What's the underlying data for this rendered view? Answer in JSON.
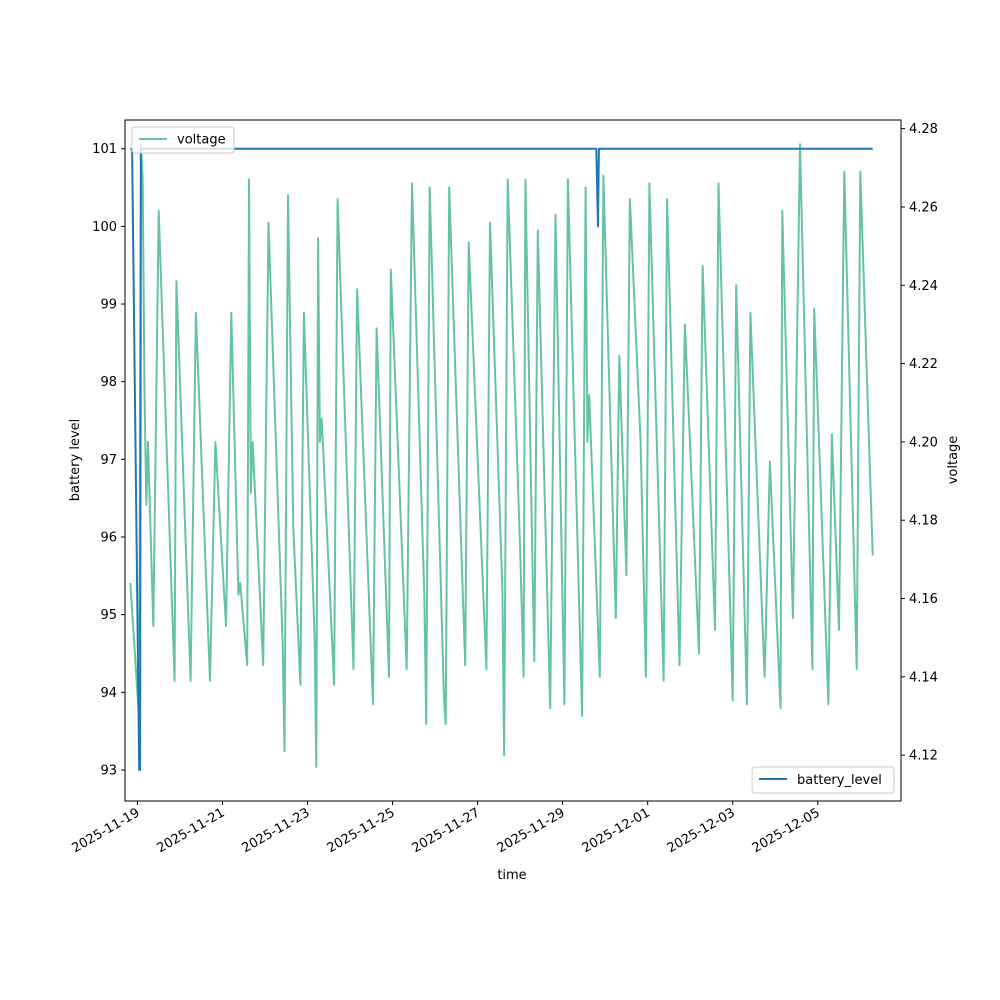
{
  "chart_data": {
    "type": "line",
    "xlabel": "time",
    "ylabel_left": "battery level",
    "ylabel_right": "voltage",
    "x_range": [
      "2025-11-18T17:00",
      "2025-12-06T23:00"
    ],
    "ylim_left": [
      92.6,
      101.37
    ],
    "ylim_right": [
      4.1083,
      4.2822
    ],
    "x_ticks": [
      "2025-11-19",
      "2025-11-21",
      "2025-11-23",
      "2025-11-25",
      "2025-11-27",
      "2025-11-29",
      "2025-12-01",
      "2025-12-03",
      "2025-12-05"
    ],
    "y_ticks_left": [
      93,
      94,
      95,
      96,
      97,
      98,
      99,
      100,
      101
    ],
    "y_ticks_right": [
      4.12,
      4.14,
      4.16,
      4.18,
      4.2,
      4.22,
      4.24,
      4.26,
      4.28
    ],
    "grid": false,
    "series": [
      {
        "name": "voltage",
        "axis": "right",
        "color": "#66c2a5",
        "legend_position": "upper-left",
        "points": [
          [
            "2025-11-18T20:00",
            4.164
          ],
          [
            "2025-11-19T01:00",
            4.129
          ],
          [
            "2025-11-19T02:00",
            4.276
          ],
          [
            "2025-11-19T03:00",
            4.267
          ],
          [
            "2025-11-19T04:00",
            4.213
          ],
          [
            "2025-11-19T05:00",
            4.184
          ],
          [
            "2025-11-19T06:00",
            4.2
          ],
          [
            "2025-11-19T09:00",
            4.153
          ],
          [
            "2025-11-19T12:00",
            4.259
          ],
          [
            "2025-11-19T21:00",
            4.139
          ],
          [
            "2025-11-19T22:00",
            4.241
          ],
          [
            "2025-11-20T06:00",
            4.139
          ],
          [
            "2025-11-20T09:00",
            4.233
          ],
          [
            "2025-11-20T17:00",
            4.139
          ],
          [
            "2025-11-20T20:00",
            4.2
          ],
          [
            "2025-11-21T02:00",
            4.153
          ],
          [
            "2025-11-21T05:00",
            4.233
          ],
          [
            "2025-11-21T09:00",
            4.161
          ],
          [
            "2025-11-21T10:00",
            4.164
          ],
          [
            "2025-11-21T14:00",
            4.143
          ],
          [
            "2025-11-21T15:00",
            4.267
          ],
          [
            "2025-11-21T16:00",
            4.187
          ],
          [
            "2025-11-21T17:00",
            4.2
          ],
          [
            "2025-11-21T23:00",
            4.143
          ],
          [
            "2025-11-22T02:00",
            4.256
          ],
          [
            "2025-11-22T10:00",
            4.148
          ],
          [
            "2025-11-22T11:00",
            4.121
          ],
          [
            "2025-11-22T13:00",
            4.263
          ],
          [
            "2025-11-22T16:00",
            4.178
          ],
          [
            "2025-11-22T20:00",
            4.138
          ],
          [
            "2025-11-22T22:00",
            4.233
          ],
          [
            "2025-11-23T04:00",
            4.15
          ],
          [
            "2025-11-23T05:00",
            4.117
          ],
          [
            "2025-11-23T06:00",
            4.252
          ],
          [
            "2025-11-23T07:00",
            4.2
          ],
          [
            "2025-11-23T08:00",
            4.206
          ],
          [
            "2025-11-23T15:00",
            4.138
          ],
          [
            "2025-11-23T17:00",
            4.262
          ],
          [
            "2025-11-24T02:00",
            4.142
          ],
          [
            "2025-11-24T04:00",
            4.239
          ],
          [
            "2025-11-24T13:00",
            4.133
          ],
          [
            "2025-11-24T15:00",
            4.229
          ],
          [
            "2025-11-24T22:00",
            4.14
          ],
          [
            "2025-11-24T23:00",
            4.244
          ],
          [
            "2025-11-25T08:00",
            4.142
          ],
          [
            "2025-11-25T11:00",
            4.266
          ],
          [
            "2025-11-25T18:00",
            4.16
          ],
          [
            "2025-11-25T19:00",
            4.128
          ],
          [
            "2025-11-25T21:00",
            4.265
          ],
          [
            "2025-11-26T05:00",
            4.135
          ],
          [
            "2025-11-26T06:00",
            4.128
          ],
          [
            "2025-11-26T08:00",
            4.265
          ],
          [
            "2025-11-26T17:00",
            4.143
          ],
          [
            "2025-11-26T19:00",
            4.251
          ],
          [
            "2025-11-27T05:00",
            4.142
          ],
          [
            "2025-11-27T07:00",
            4.256
          ],
          [
            "2025-11-27T14:00",
            4.162
          ],
          [
            "2025-11-27T15:00",
            4.12
          ],
          [
            "2025-11-27T17:00",
            4.267
          ],
          [
            "2025-11-28T00:00",
            4.173
          ],
          [
            "2025-11-28T02:00",
            4.14
          ],
          [
            "2025-11-28T03:00",
            4.267
          ],
          [
            "2025-11-28T08:00",
            4.144
          ],
          [
            "2025-11-28T10:00",
            4.254
          ],
          [
            "2025-11-28T17:00",
            4.132
          ],
          [
            "2025-11-28T20:00",
            4.258
          ],
          [
            "2025-11-29T01:00",
            4.133
          ],
          [
            "2025-11-29T03:00",
            4.267
          ],
          [
            "2025-11-29T11:00",
            4.13
          ],
          [
            "2025-11-29T13:00",
            4.265
          ],
          [
            "2025-11-29T14:00",
            4.2
          ],
          [
            "2025-11-29T15:00",
            4.212
          ],
          [
            "2025-11-29T21:00",
            4.14
          ],
          [
            "2025-11-29T23:00",
            4.268
          ],
          [
            "2025-11-30T06:00",
            4.155
          ],
          [
            "2025-11-30T08:00",
            4.222
          ],
          [
            "2025-11-30T12:00",
            4.166
          ],
          [
            "2025-11-30T14:00",
            4.262
          ],
          [
            "2025-11-30T20:00",
            4.2
          ],
          [
            "2025-11-30T23:00",
            4.14
          ],
          [
            "2025-12-01T01:00",
            4.266
          ],
          [
            "2025-12-01T09:00",
            4.139
          ],
          [
            "2025-12-01T11:00",
            4.262
          ],
          [
            "2025-12-01T18:00",
            4.143
          ],
          [
            "2025-12-01T21:00",
            4.23
          ],
          [
            "2025-12-02T05:00",
            4.146
          ],
          [
            "2025-12-02T07:00",
            4.245
          ],
          [
            "2025-12-02T14:00",
            4.152
          ],
          [
            "2025-12-02T16:00",
            4.266
          ],
          [
            "2025-12-03T00:00",
            4.134
          ],
          [
            "2025-12-03T02:00",
            4.24
          ],
          [
            "2025-12-03T08:00",
            4.133
          ],
          [
            "2025-12-03T10:00",
            4.233
          ],
          [
            "2025-12-03T18:00",
            4.14
          ],
          [
            "2025-12-03T21:00",
            4.195
          ],
          [
            "2025-12-04T03:00",
            4.132
          ],
          [
            "2025-12-04T04:00",
            4.259
          ],
          [
            "2025-12-04T10:00",
            4.155
          ],
          [
            "2025-12-04T14:00",
            4.276
          ],
          [
            "2025-12-04T21:00",
            4.142
          ],
          [
            "2025-12-04T22:00",
            4.234
          ],
          [
            "2025-12-05T06:00",
            4.133
          ],
          [
            "2025-12-05T08:00",
            4.202
          ],
          [
            "2025-12-05T12:00",
            4.152
          ],
          [
            "2025-12-05T15:00",
            4.269
          ],
          [
            "2025-12-05T22:00",
            4.142
          ],
          [
            "2025-12-06T00:00",
            4.269
          ],
          [
            "2025-12-06T07:00",
            4.171
          ]
        ]
      },
      {
        "name": "battery_level",
        "axis": "left",
        "color": "#1f77b4",
        "legend_position": "lower-right",
        "points": [
          [
            "2025-11-18T20:00",
            101
          ],
          [
            "2025-11-18T21:00",
            101
          ],
          [
            "2025-11-19T01:00",
            93
          ],
          [
            "2025-11-19T01:30",
            93
          ],
          [
            "2025-11-19T02:00",
            101
          ],
          [
            "2025-11-29T19:00",
            101
          ],
          [
            "2025-11-29T20:00",
            100
          ],
          [
            "2025-11-29T20:30",
            101
          ],
          [
            "2025-12-06T07:00",
            101
          ]
        ]
      }
    ]
  }
}
